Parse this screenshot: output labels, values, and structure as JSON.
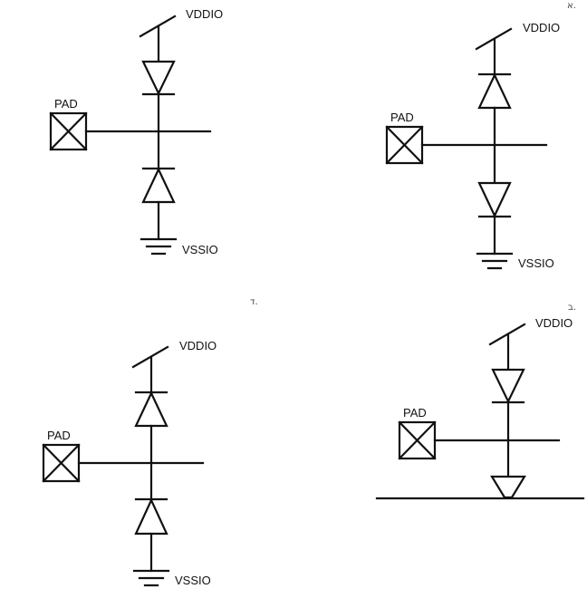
{
  "labels": {
    "vddio": "VDDIO",
    "vssio": "VSSIO",
    "pad": "PAD"
  },
  "options": {
    "a": "א.",
    "b": "ב.",
    "d": "ד."
  }
}
